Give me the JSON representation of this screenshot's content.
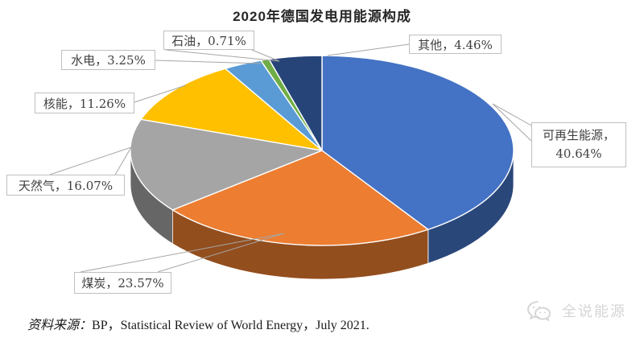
{
  "page": {
    "background": "#FFFFFF"
  },
  "chart_data": {
    "type": "pie",
    "projection": "3d",
    "title": "2020年德国发电用能源构成",
    "unit": "%",
    "start_angle_deg": 0,
    "direction": "clockwise",
    "legend": "none",
    "series": [
      {
        "label": "可再生能源",
        "value": 40.64,
        "color": "#4472C4"
      },
      {
        "label": "煤炭",
        "value": 23.57,
        "color": "#ED7D31"
      },
      {
        "label": "天然气",
        "value": 16.07,
        "color": "#A5A5A5"
      },
      {
        "label": "核能",
        "value": 11.26,
        "color": "#FFC000"
      },
      {
        "label": "水电",
        "value": 3.25,
        "color": "#5B9BD5"
      },
      {
        "label": "石油",
        "value": 0.71,
        "color": "#70AD47"
      },
      {
        "label": "其他",
        "value": 4.46,
        "color": "#264478"
      }
    ],
    "callout_format": "{label}，{value}%",
    "leader_line_color": "#A6A6A6",
    "callout_border_color": "#BFBFBF",
    "callout_text_color": "#404040",
    "slice_border_color": "#FFFFFF"
  },
  "source": {
    "prefix": "资料来源：",
    "text": "BP，Statistical Review of World Energy，July 2021."
  },
  "watermark": {
    "text": "全说能源",
    "icon": "speech-bubbles-icon",
    "color": "#D6D6D6"
  }
}
